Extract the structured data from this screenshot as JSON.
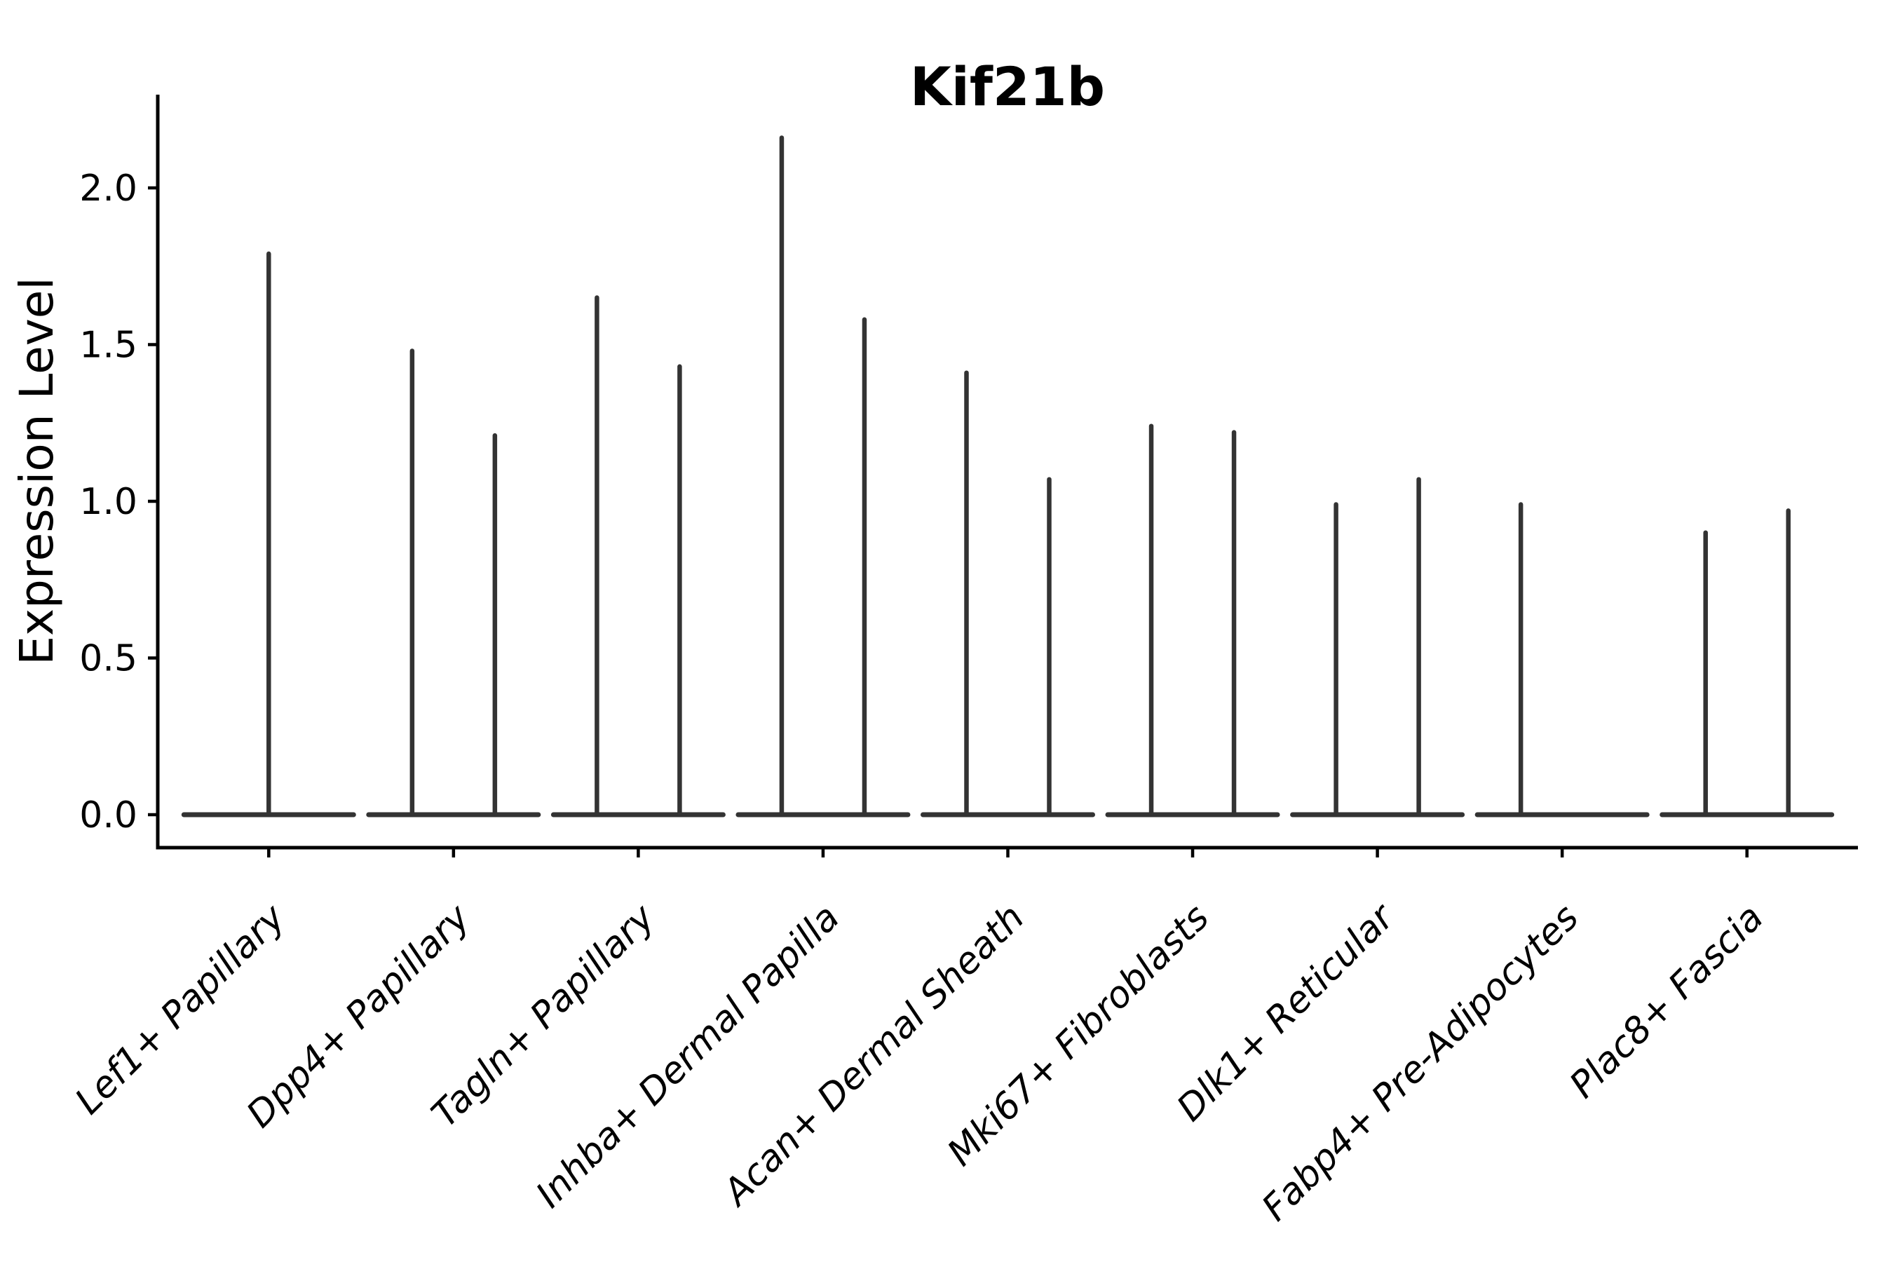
{
  "page": {
    "background": "#ffffff"
  },
  "chart_data": {
    "type": "violin",
    "title": "Kif21b",
    "xlabel": "",
    "ylabel": "Expression Level",
    "ytick_labels": [
      "2.0",
      "1.5",
      "1.0",
      "0.5",
      "0.0"
    ],
    "ytick_values": [
      2.0,
      1.5,
      1.0,
      0.5,
      0.0
    ],
    "ylim": [
      -0.1,
      2.3
    ],
    "grid": false,
    "legend": false,
    "violin_color": "#333333",
    "axis_color": "#000000",
    "style": "zero-inflated violins: wide flat base at expression 0 with a thin vertical spike rising to the max expression value; categories 2-7 and 9 show two side-by-side spikes, category 1 one centered spike, category 8 one left spike",
    "categories": [
      "Lef1+ Papillary",
      "Dpp4+ Papillary",
      "Tagln+ Papillary",
      "Inhba+ Dermal Papilla",
      "Acan+ Dermal Sheath",
      "Mki67+ Fibroblasts",
      "Dlk1+ Reticular",
      "Fabp4+ Pre-Adipocytes",
      "Plac8+ Fascia"
    ],
    "series": [
      {
        "category": "Lef1+ Papillary",
        "violins": [
          {
            "position": "center",
            "max_expression": 1.79
          }
        ]
      },
      {
        "category": "Dpp4+ Papillary",
        "violins": [
          {
            "position": "left",
            "max_expression": 1.48
          },
          {
            "position": "right",
            "max_expression": 1.21
          }
        ]
      },
      {
        "category": "Tagln+ Papillary",
        "violins": [
          {
            "position": "left",
            "max_expression": 1.65
          },
          {
            "position": "right",
            "max_expression": 1.43
          }
        ]
      },
      {
        "category": "Inhba+ Dermal Papilla",
        "violins": [
          {
            "position": "left",
            "max_expression": 2.16
          },
          {
            "position": "right",
            "max_expression": 1.58
          }
        ]
      },
      {
        "category": "Acan+ Dermal Sheath",
        "violins": [
          {
            "position": "left",
            "max_expression": 1.41
          },
          {
            "position": "right",
            "max_expression": 1.07
          }
        ]
      },
      {
        "category": "Mki67+ Fibroblasts",
        "violins": [
          {
            "position": "left",
            "max_expression": 1.24
          },
          {
            "position": "right",
            "max_expression": 1.22
          }
        ]
      },
      {
        "category": "Dlk1+ Reticular",
        "violins": [
          {
            "position": "left",
            "max_expression": 0.99
          },
          {
            "position": "right",
            "max_expression": 1.07
          }
        ]
      },
      {
        "category": "Fabp4+ Pre-Adipocytes",
        "violins": [
          {
            "position": "left",
            "max_expression": 0.99
          }
        ]
      },
      {
        "category": "Plac8+ Fascia",
        "violins": [
          {
            "position": "left",
            "max_expression": 0.9
          },
          {
            "position": "right",
            "max_expression": 0.97
          }
        ]
      }
    ]
  }
}
